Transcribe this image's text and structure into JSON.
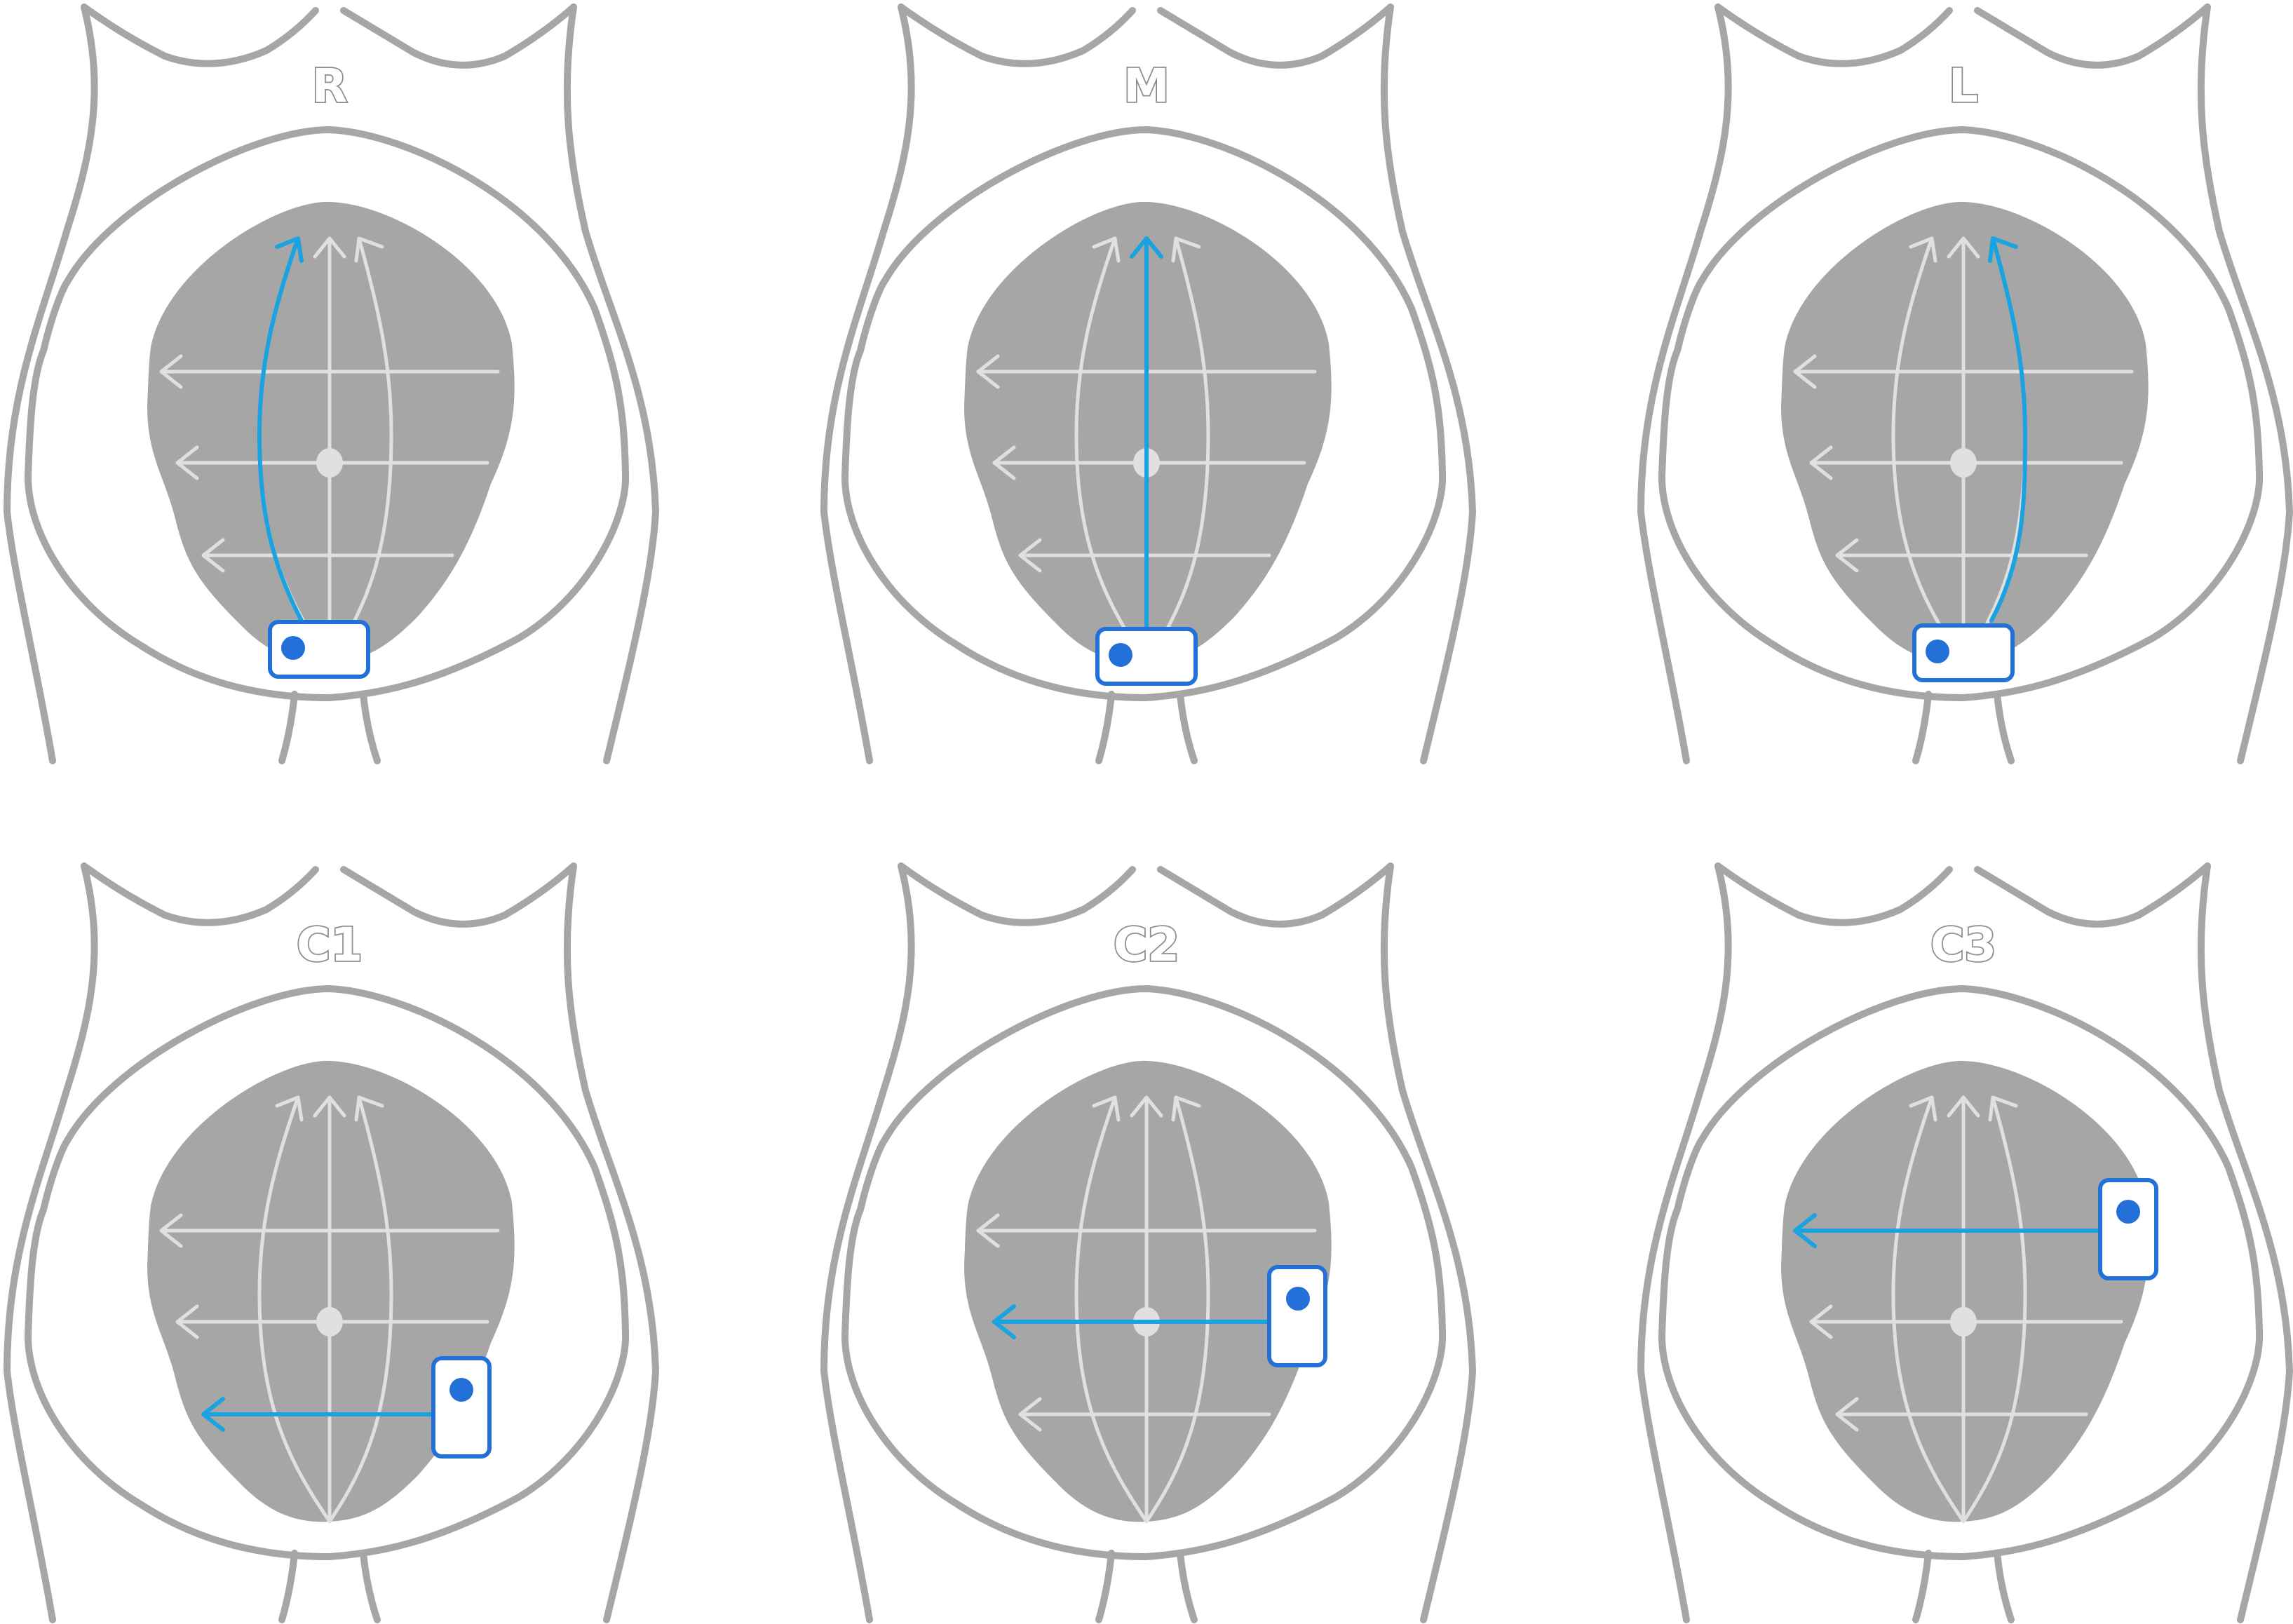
{
  "colors": {
    "outline": "#a6a6a6",
    "guides": "#e0e0e0",
    "scan_path": "#1aa3e0",
    "probe_border": "#2370d8",
    "probe_dot": "#2370d8"
  },
  "panels": [
    {
      "label": "R",
      "scan": "sagittal",
      "side": "right",
      "probe": "bottom"
    },
    {
      "label": "M",
      "scan": "sagittal",
      "side": "middle",
      "probe": "bottom"
    },
    {
      "label": "L",
      "scan": "sagittal",
      "side": "left",
      "probe": "bottom"
    },
    {
      "label": "C1",
      "scan": "coronal",
      "level": "lower",
      "probe": "vertical"
    },
    {
      "label": "C2",
      "scan": "coronal",
      "level": "middle",
      "probe": "vertical"
    },
    {
      "label": "C3",
      "scan": "coronal",
      "level": "upper",
      "probe": "vertical"
    }
  ]
}
